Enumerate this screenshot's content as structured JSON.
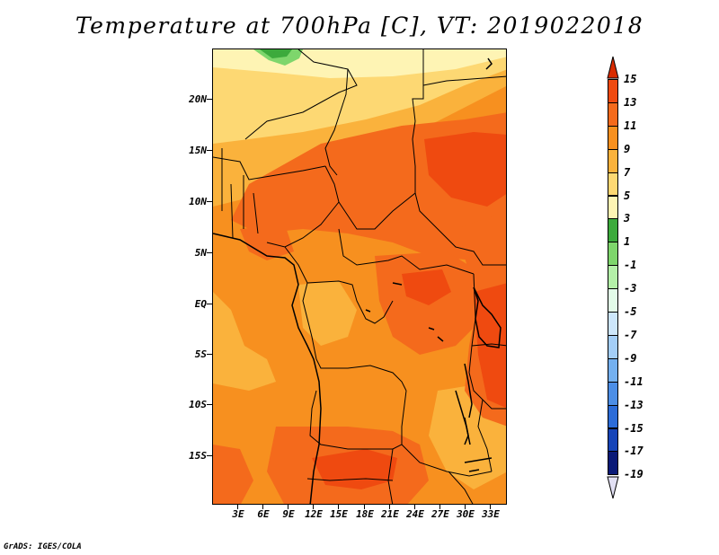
{
  "title": "Temperature at 700hPa [C], VT: 2019022018",
  "footer": "GrADS: IGES/COLA",
  "y_axis": [
    "20N",
    "15N",
    "10N",
    "5N",
    "EQ",
    "5S",
    "10S",
    "15S"
  ],
  "x_axis": [
    "3E",
    "6E",
    "9E",
    "12E",
    "15E",
    "18E",
    "21E",
    "24E",
    "27E",
    "30E",
    "33E"
  ],
  "colorbar": {
    "labels": [
      "15",
      "13",
      "11",
      "9",
      "7",
      "5",
      "3",
      "1",
      "-1",
      "-3",
      "-5",
      "-7",
      "-9",
      "-11",
      "-13",
      "-15",
      "-17",
      "-19"
    ],
    "colors": [
      "#d92b00",
      "#ef4a10",
      "#f46a1c",
      "#f7901f",
      "#fab23c",
      "#fdd873",
      "#fef4b4",
      "#3caa3c",
      "#7ed66c",
      "#b4f0a8",
      "#e2fbe8",
      "#cde6fb",
      "#a4cef7",
      "#74b0ef",
      "#4c8ee6",
      "#2c6cd8",
      "#1644b8",
      "#0a1a78"
    ],
    "top_arrow_color": "#d92b00",
    "bottom_arrow_color": "#e2e0f4"
  },
  "map_colors": {
    "t13": "#ef4a10",
    "t11": "#f46a1c",
    "t9": "#f7901f",
    "t7": "#fab23c",
    "t5": "#fdd873",
    "t3": "#fef4b4",
    "t1": "#3caa3c",
    "tm1": "#7ed66c",
    "border": "#000000"
  }
}
